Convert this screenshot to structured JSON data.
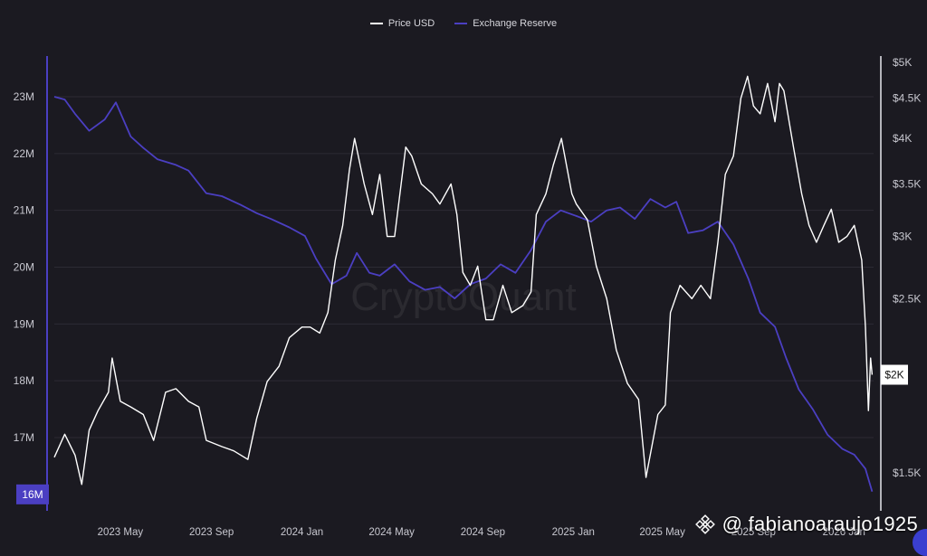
{
  "legend": {
    "price_label": "Price USD",
    "reserve_label": "Exchange Reserve"
  },
  "watermark": {
    "brand": "CryptoQuant",
    "handle": "@ fabianoaraujo1925"
  },
  "colors": {
    "background": "#1b1a21",
    "price": "#ffffff",
    "reserve": "#4b3fc2",
    "grid": "#2c2b34",
    "axis_text": "#c8c8d0"
  },
  "chart_data": {
    "type": "line",
    "title": "",
    "xlabel": "",
    "ylabel_left": "",
    "ylabel_right": "",
    "grid": true,
    "legend_position": "top-center",
    "x_ticks": [
      "2023 May",
      "2023 Sep",
      "2024 Jan",
      "2024 May",
      "2024 Sep",
      "2025 Jan",
      "2025 May",
      "2025 Sep",
      "2026 Jan"
    ],
    "x_range": [
      "2023-02-01",
      "2026-02-10"
    ],
    "y_left": {
      "ticks": [
        "23M",
        "22M",
        "21M",
        "20M",
        "19M",
        "18M",
        "17M"
      ],
      "tick_values": [
        23000000,
        22000000,
        21000000,
        20000000,
        19000000,
        18000000,
        17000000
      ],
      "range": [
        15800000,
        23600000
      ],
      "current_label": "16M",
      "current_value": 16000000
    },
    "y_right": {
      "scale": "log",
      "ticks": [
        "$5K",
        "$4.5K",
        "$4K",
        "$3.5K",
        "$3K",
        "$2.5K",
        "$1.5K"
      ],
      "tick_values": [
        5000,
        4500,
        4000,
        3500,
        3000,
        2500,
        1500
      ],
      "range": [
        1380,
        5000
      ],
      "current_label": "$2K",
      "current_value": 2000
    },
    "series": [
      {
        "name": "Price USD",
        "axis": "right",
        "x": [
          "2023-02-01",
          "2023-02-15",
          "2023-03-01",
          "2023-03-10",
          "2023-03-20",
          "2023-04-01",
          "2023-04-15",
          "2023-04-20",
          "2023-05-01",
          "2023-05-15",
          "2023-06-01",
          "2023-06-15",
          "2023-07-01",
          "2023-07-15",
          "2023-08-01",
          "2023-08-15",
          "2023-08-25",
          "2023-09-15",
          "2023-10-01",
          "2023-10-20",
          "2023-11-01",
          "2023-11-15",
          "2023-12-01",
          "2023-12-15",
          "2024-01-01",
          "2024-01-12",
          "2024-01-25",
          "2024-02-05",
          "2024-02-15",
          "2024-02-25",
          "2024-03-05",
          "2024-03-12",
          "2024-03-25",
          "2024-04-05",
          "2024-04-15",
          "2024-04-25",
          "2024-05-05",
          "2024-05-20",
          "2024-05-28",
          "2024-06-10",
          "2024-06-25",
          "2024-07-05",
          "2024-07-20",
          "2024-07-28",
          "2024-08-05",
          "2024-08-15",
          "2024-08-25",
          "2024-09-05",
          "2024-09-15",
          "2024-09-28",
          "2024-10-10",
          "2024-10-25",
          "2024-11-05",
          "2024-11-12",
          "2024-11-25",
          "2024-12-05",
          "2024-12-16",
          "2024-12-30",
          "2025-01-05",
          "2025-01-20",
          "2025-02-01",
          "2025-02-15",
          "2025-02-28",
          "2025-03-15",
          "2025-03-30",
          "2025-04-09",
          "2025-04-25",
          "2025-05-05",
          "2025-05-12",
          "2025-05-25",
          "2025-06-10",
          "2025-06-22",
          "2025-07-05",
          "2025-07-15",
          "2025-07-25",
          "2025-08-05",
          "2025-08-15",
          "2025-08-24",
          "2025-09-01",
          "2025-09-10",
          "2025-09-20",
          "2025-09-30",
          "2025-10-06",
          "2025-10-12",
          "2025-10-25",
          "2025-11-05",
          "2025-11-15",
          "2025-11-25",
          "2025-12-05",
          "2025-12-15",
          "2025-12-25",
          "2026-01-05",
          "2026-01-15",
          "2026-01-25",
          "2026-01-30",
          "2026-02-03",
          "2026-02-06",
          "2026-02-08"
        ],
        "values": [
          1570,
          1680,
          1580,
          1450,
          1700,
          1800,
          1900,
          2100,
          1850,
          1820,
          1780,
          1650,
          1900,
          1920,
          1850,
          1820,
          1650,
          1620,
          1600,
          1560,
          1760,
          1960,
          2050,
          2230,
          2300,
          2300,
          2260,
          2400,
          2800,
          3100,
          3650,
          4000,
          3500,
          3200,
          3600,
          3000,
          3000,
          3900,
          3800,
          3500,
          3400,
          3300,
          3500,
          3200,
          2700,
          2600,
          2750,
          2350,
          2350,
          2600,
          2400,
          2450,
          2550,
          3200,
          3400,
          3700,
          4000,
          3400,
          3300,
          3150,
          2750,
          2500,
          2150,
          1950,
          1860,
          1480,
          1780,
          1830,
          2400,
          2600,
          2500,
          2600,
          2500,
          2950,
          3600,
          3800,
          4500,
          4800,
          4400,
          4300,
          4700,
          4200,
          4700,
          4600,
          3900,
          3400,
          3100,
          2950,
          3100,
          3250,
          2950,
          3000,
          3100,
          2800,
          2300,
          1800,
          2100,
          2000
        ]
      },
      {
        "name": "Exchange Reserve",
        "axis": "left",
        "x": [
          "2023-02-01",
          "2023-02-15",
          "2023-03-01",
          "2023-03-20",
          "2023-04-10",
          "2023-04-25",
          "2023-05-15",
          "2023-06-01",
          "2023-06-20",
          "2023-07-15",
          "2023-08-01",
          "2023-08-25",
          "2023-09-15",
          "2023-10-10",
          "2023-11-01",
          "2023-11-20",
          "2023-12-15",
          "2024-01-05",
          "2024-01-20",
          "2024-02-10",
          "2024-03-01",
          "2024-03-15",
          "2024-04-01",
          "2024-04-15",
          "2024-05-05",
          "2024-05-25",
          "2024-06-15",
          "2024-07-05",
          "2024-07-25",
          "2024-08-15",
          "2024-09-05",
          "2024-09-25",
          "2024-10-15",
          "2024-11-05",
          "2024-11-25",
          "2024-12-15",
          "2025-01-05",
          "2025-01-25",
          "2025-02-15",
          "2025-03-05",
          "2025-03-25",
          "2025-04-15",
          "2025-05-05",
          "2025-05-20",
          "2025-06-05",
          "2025-06-25",
          "2025-07-15",
          "2025-08-05",
          "2025-08-25",
          "2025-09-10",
          "2025-09-30",
          "2025-10-15",
          "2025-11-01",
          "2025-11-20",
          "2025-12-10",
          "2025-12-30",
          "2026-01-15",
          "2026-01-30",
          "2026-02-08"
        ],
        "values": [
          23000000,
          22950000,
          22700000,
          22400000,
          22600000,
          22900000,
          22300000,
          22100000,
          21900000,
          21800000,
          21700000,
          21300000,
          21250000,
          21100000,
          20950000,
          20850000,
          20700000,
          20550000,
          20150000,
          19700000,
          19850000,
          20250000,
          19900000,
          19850000,
          20050000,
          19750000,
          19600000,
          19650000,
          19450000,
          19700000,
          19800000,
          20050000,
          19900000,
          20300000,
          20800000,
          21000000,
          20900000,
          20800000,
          21000000,
          21050000,
          20850000,
          21200000,
          21050000,
          21150000,
          20600000,
          20650000,
          20800000,
          20400000,
          19800000,
          19200000,
          18950000,
          18400000,
          17850000,
          17500000,
          17050000,
          16800000,
          16700000,
          16450000,
          16050000
        ]
      }
    ]
  }
}
